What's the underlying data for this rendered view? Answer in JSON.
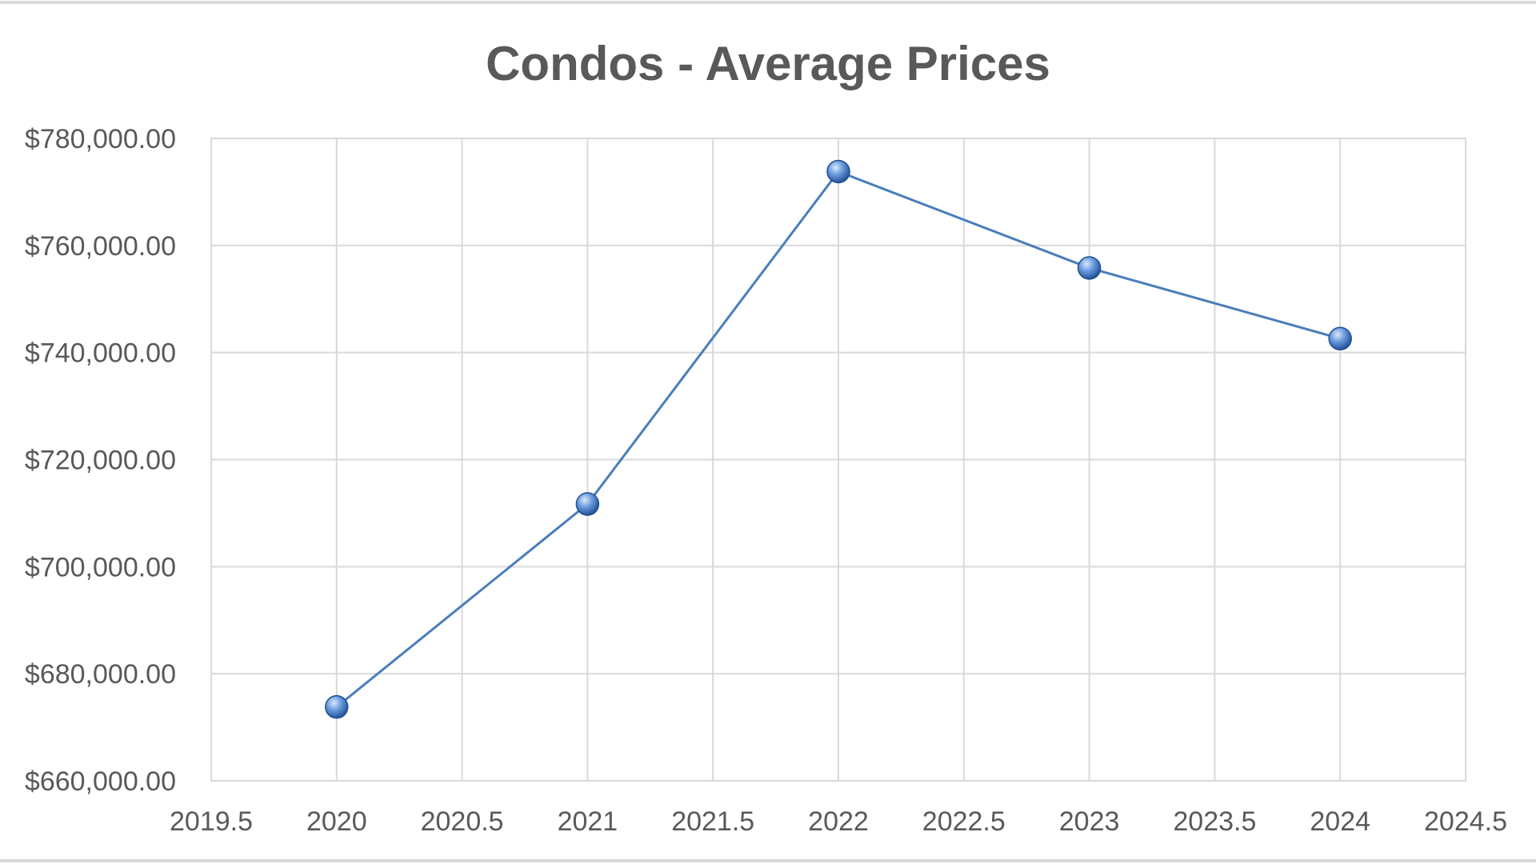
{
  "colors": {
    "series": "#4a7ebb",
    "marker_light": "#dbe8f8",
    "marker_mid": "#6d9de0",
    "marker_dark": "#1f4f93",
    "grid": "#d9d9d9",
    "text": "#595959"
  },
  "chart_data": {
    "type": "scatter",
    "title": "Condos - Average Prices",
    "xlabel": "",
    "ylabel": "",
    "xlim": [
      2019.5,
      2024.5
    ],
    "ylim": [
      660000,
      780000
    ],
    "x_ticks": [
      2019.5,
      2020,
      2020.5,
      2021,
      2021.5,
      2022,
      2022.5,
      2023,
      2023.5,
      2024,
      2024.5
    ],
    "x_tick_labels": [
      "2019.5",
      "2020",
      "2020.5",
      "2021",
      "2021.5",
      "2022",
      "2022.5",
      "2023",
      "2023.5",
      "2024",
      "2024.5"
    ],
    "y_ticks": [
      660000,
      680000,
      700000,
      720000,
      740000,
      760000,
      780000
    ],
    "y_tick_labels": [
      "$660,000.00",
      "$680,000.00",
      "$700,000.00",
      "$720,000.00",
      "$740,000.00",
      "$760,000.00",
      "$780,000.00"
    ],
    "grid": true,
    "legend": "none",
    "markers": true,
    "connect_points": true,
    "series": [
      {
        "x": [
          2020,
          2021,
          2022,
          2023,
          2024
        ],
        "y": [
          673800,
          711700,
          773800,
          755800,
          742600
        ]
      }
    ]
  }
}
